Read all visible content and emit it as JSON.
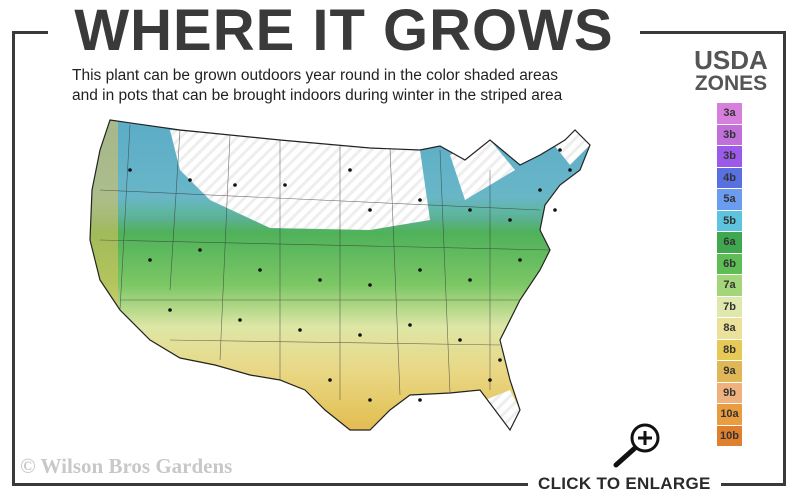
{
  "header": {
    "title": "WHERE IT GROWS",
    "subtitle_line1": "This plant can be grown outdoors year round in the color shaded areas",
    "subtitle_line2": "and in pots that can be brought indoors during winter in the striped area"
  },
  "legend": {
    "title_line1": "USDA",
    "title_line2": "ZONES",
    "zones": [
      {
        "label": "3a",
        "color": "#d77fdc"
      },
      {
        "label": "3b",
        "color": "#c070d8"
      },
      {
        "label": "3b",
        "color": "#9b5be8"
      },
      {
        "label": "4b",
        "color": "#5a6fe0"
      },
      {
        "label": "5a",
        "color": "#6b9cf0"
      },
      {
        "label": "5b",
        "color": "#5cc4dc"
      },
      {
        "label": "6a",
        "color": "#3fa84e"
      },
      {
        "label": "6b",
        "color": "#5ebd55"
      },
      {
        "label": "7a",
        "color": "#a3d57a"
      },
      {
        "label": "7b",
        "color": "#dfe9ae"
      },
      {
        "label": "8a",
        "color": "#ece19a"
      },
      {
        "label": "8b",
        "color": "#e7c957"
      },
      {
        "label": "9a",
        "color": "#dfb757"
      },
      {
        "label": "9b",
        "color": "#efb27f"
      },
      {
        "label": "10a",
        "color": "#ea9c40"
      },
      {
        "label": "10b",
        "color": "#e07f2e"
      }
    ]
  },
  "footer": {
    "copyright": "© Wilson Bros Gardens",
    "enlarge_label": "CLICK TO ENLARGE"
  },
  "icons": {
    "enlarge": "magnifier-plus-icon"
  }
}
